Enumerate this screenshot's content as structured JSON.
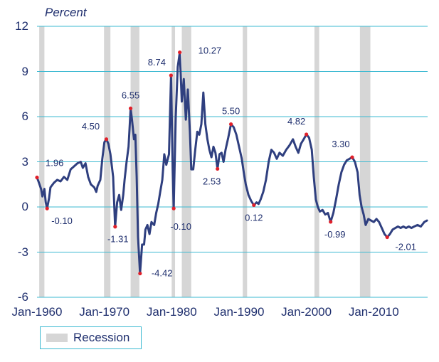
{
  "chart_data": {
    "type": "line",
    "title": "",
    "ylabel": "Percent",
    "xlabel": "",
    "ylim": [
      -6,
      12
    ],
    "yticks": [
      12,
      9,
      6,
      3,
      0,
      -3,
      -6
    ],
    "xlim": [
      1960,
      2018
    ],
    "xtick_labels": [
      "Jan-1960",
      "Jan-1970",
      "Jan-1980",
      "Jan-1990",
      "Jan-2000",
      "Jan-2010"
    ],
    "xtick_values": [
      1960,
      1970,
      1980,
      1990,
      2000,
      2010
    ],
    "grid": true,
    "legend": {
      "placement": "bottom-left",
      "items": [
        {
          "label": "Recession",
          "color": "#d6d6d6"
        }
      ]
    },
    "colors": {
      "line": "#2f3f7f",
      "gridline": "#3bb9d1",
      "marker": "#e0202a",
      "recession": "#d6d6d6",
      "text": "#1f2f6e"
    },
    "recessions": [
      [
        1960.33,
        1961.1
      ],
      [
        1969.95,
        1970.9
      ],
      [
        1973.9,
        1975.2
      ],
      [
        1980.0,
        1980.5
      ],
      [
        1981.5,
        1982.9
      ],
      [
        1990.55,
        1991.2
      ],
      [
        2001.2,
        2001.9
      ],
      [
        2007.95,
        2009.5
      ]
    ],
    "series": [
      {
        "values": [
          [
            1960.0,
            1.96
          ],
          [
            1960.3,
            1.6
          ],
          [
            1960.6,
            1.2
          ],
          [
            1960.8,
            0.7
          ],
          [
            1961.1,
            1.2
          ],
          [
            1961.3,
            0.3
          ],
          [
            1961.5,
            -0.1
          ],
          [
            1961.8,
            0.6
          ],
          [
            1962.0,
            1.3
          ],
          [
            1962.5,
            1.6
          ],
          [
            1963.0,
            1.8
          ],
          [
            1963.5,
            1.7
          ],
          [
            1964.0,
            2.0
          ],
          [
            1964.5,
            1.8
          ],
          [
            1965.0,
            2.5
          ],
          [
            1965.5,
            2.7
          ],
          [
            1966.0,
            2.9
          ],
          [
            1966.5,
            3.0
          ],
          [
            1966.8,
            2.6
          ],
          [
            1967.2,
            2.9
          ],
          [
            1967.6,
            2.0
          ],
          [
            1968.0,
            1.5
          ],
          [
            1968.5,
            1.3
          ],
          [
            1968.8,
            1.0
          ],
          [
            1969.0,
            1.4
          ],
          [
            1969.4,
            1.8
          ],
          [
            1969.7,
            3.2
          ],
          [
            1970.0,
            4.3
          ],
          [
            1970.3,
            4.5
          ],
          [
            1970.6,
            4.2
          ],
          [
            1970.9,
            3.5
          ],
          [
            1971.3,
            2.0
          ],
          [
            1971.6,
            -1.31
          ],
          [
            1971.9,
            0.3
          ],
          [
            1972.2,
            0.8
          ],
          [
            1972.5,
            -0.2
          ],
          [
            1972.8,
            0.8
          ],
          [
            1973.0,
            1.8
          ],
          [
            1973.3,
            3.0
          ],
          [
            1973.6,
            4.0
          ],
          [
            1973.9,
            6.55
          ],
          [
            1974.1,
            5.8
          ],
          [
            1974.4,
            4.5
          ],
          [
            1974.6,
            4.8
          ],
          [
            1974.8,
            2.0
          ],
          [
            1975.0,
            -2.0
          ],
          [
            1975.3,
            -4.42
          ],
          [
            1975.6,
            -2.5
          ],
          [
            1975.9,
            -2.5
          ],
          [
            1976.1,
            -1.5
          ],
          [
            1976.4,
            -1.2
          ],
          [
            1976.7,
            -1.8
          ],
          [
            1977.0,
            -1.0
          ],
          [
            1977.4,
            -1.2
          ],
          [
            1977.7,
            -0.4
          ],
          [
            1978.0,
            0.2
          ],
          [
            1978.3,
            1.0
          ],
          [
            1978.6,
            1.8
          ],
          [
            1978.9,
            3.5
          ],
          [
            1979.2,
            2.8
          ],
          [
            1979.6,
            3.5
          ],
          [
            1979.9,
            8.74
          ],
          [
            1980.15,
            2.5
          ],
          [
            1980.3,
            -0.1
          ],
          [
            1980.6,
            6.0
          ],
          [
            1980.9,
            9.3
          ],
          [
            1981.2,
            10.27
          ],
          [
            1981.5,
            7.0
          ],
          [
            1981.8,
            8.5
          ],
          [
            1982.1,
            5.8
          ],
          [
            1982.4,
            7.8
          ],
          [
            1982.7,
            5.0
          ],
          [
            1982.9,
            2.5
          ],
          [
            1983.2,
            2.5
          ],
          [
            1983.5,
            3.8
          ],
          [
            1983.8,
            5.0
          ],
          [
            1984.1,
            4.8
          ],
          [
            1984.4,
            5.5
          ],
          [
            1984.7,
            7.6
          ],
          [
            1985.0,
            5.5
          ],
          [
            1985.3,
            4.5
          ],
          [
            1985.6,
            3.8
          ],
          [
            1985.9,
            3.3
          ],
          [
            1986.2,
            4.0
          ],
          [
            1986.5,
            3.6
          ],
          [
            1986.8,
            2.53
          ],
          [
            1987.1,
            3.5
          ],
          [
            1987.4,
            3.6
          ],
          [
            1987.7,
            3.0
          ],
          [
            1988.0,
            3.8
          ],
          [
            1988.4,
            4.6
          ],
          [
            1988.8,
            5.5
          ],
          [
            1989.2,
            5.3
          ],
          [
            1989.6,
            4.8
          ],
          [
            1990.0,
            4.0
          ],
          [
            1990.4,
            3.2
          ],
          [
            1990.7,
            2.3
          ],
          [
            1991.0,
            1.5
          ],
          [
            1991.4,
            0.8
          ],
          [
            1991.8,
            0.4
          ],
          [
            1992.2,
            0.12
          ],
          [
            1992.6,
            0.3
          ],
          [
            1992.9,
            0.2
          ],
          [
            1993.2,
            0.5
          ],
          [
            1993.6,
            1.0
          ],
          [
            1994.0,
            1.8
          ],
          [
            1994.4,
            3.0
          ],
          [
            1994.8,
            3.8
          ],
          [
            1995.2,
            3.6
          ],
          [
            1995.6,
            3.2
          ],
          [
            1996.0,
            3.6
          ],
          [
            1996.5,
            3.4
          ],
          [
            1997.0,
            3.8
          ],
          [
            1997.5,
            4.1
          ],
          [
            1998.0,
            4.5
          ],
          [
            1998.4,
            4.0
          ],
          [
            1998.8,
            3.6
          ],
          [
            1999.2,
            4.2
          ],
          [
            1999.6,
            4.5
          ],
          [
            2000.0,
            4.82
          ],
          [
            2000.4,
            4.6
          ],
          [
            2000.8,
            3.8
          ],
          [
            2001.1,
            2.0
          ],
          [
            2001.4,
            0.5
          ],
          [
            2001.7,
            0.0
          ],
          [
            2002.0,
            -0.3
          ],
          [
            2002.4,
            -0.2
          ],
          [
            2002.8,
            -0.5
          ],
          [
            2003.2,
            -0.4
          ],
          [
            2003.6,
            -0.99
          ],
          [
            2004.0,
            -0.4
          ],
          [
            2004.4,
            0.5
          ],
          [
            2004.8,
            1.5
          ],
          [
            2005.2,
            2.3
          ],
          [
            2005.6,
            2.8
          ],
          [
            2006.0,
            3.1
          ],
          [
            2006.4,
            3.2
          ],
          [
            2006.8,
            3.3
          ],
          [
            2007.2,
            3.0
          ],
          [
            2007.6,
            2.3
          ],
          [
            2007.9,
            0.8
          ],
          [
            2008.2,
            0.0
          ],
          [
            2008.5,
            -0.5
          ],
          [
            2008.8,
            -1.2
          ],
          [
            2009.2,
            -0.8
          ],
          [
            2009.6,
            -0.9
          ],
          [
            2010.0,
            -1.0
          ],
          [
            2010.4,
            -0.8
          ],
          [
            2010.8,
            -1.0
          ],
          [
            2011.2,
            -1.4
          ],
          [
            2011.6,
            -1.8
          ],
          [
            2012.0,
            -2.01
          ],
          [
            2012.4,
            -1.8
          ],
          [
            2012.8,
            -1.5
          ],
          [
            2013.2,
            -1.4
          ],
          [
            2013.6,
            -1.3
          ],
          [
            2014.0,
            -1.4
          ],
          [
            2014.4,
            -1.3
          ],
          [
            2014.8,
            -1.4
          ],
          [
            2015.2,
            -1.3
          ],
          [
            2015.6,
            -1.4
          ],
          [
            2016.0,
            -1.3
          ],
          [
            2016.5,
            -1.2
          ],
          [
            2017.0,
            -1.3
          ],
          [
            2017.5,
            -1.0
          ],
          [
            2017.9,
            -0.9
          ]
        ]
      }
    ],
    "annotations": [
      {
        "x": 1960.0,
        "y": 1.96,
        "label": "1.96"
      },
      {
        "x": 1961.5,
        "y": -0.1,
        "label": "-0.10"
      },
      {
        "x": 1970.3,
        "y": 4.5,
        "label": "4.50"
      },
      {
        "x": 1971.6,
        "y": -1.31,
        "label": "-1.31"
      },
      {
        "x": 1973.9,
        "y": 6.55,
        "label": "6.55"
      },
      {
        "x": 1975.3,
        "y": -4.42,
        "label": "-4.42"
      },
      {
        "x": 1979.9,
        "y": 8.74,
        "label": "8.74"
      },
      {
        "x": 1980.3,
        "y": -0.1,
        "label": "-0.10"
      },
      {
        "x": 1981.2,
        "y": 10.27,
        "label": "10.27"
      },
      {
        "x": 1986.8,
        "y": 2.53,
        "label": "2.53"
      },
      {
        "x": 1988.8,
        "y": 5.5,
        "label": "5.50"
      },
      {
        "x": 1992.2,
        "y": 0.12,
        "label": "0.12"
      },
      {
        "x": 2000.0,
        "y": 4.82,
        "label": "4.82"
      },
      {
        "x": 2003.6,
        "y": -0.99,
        "label": "-0.99"
      },
      {
        "x": 2006.8,
        "y": 3.3,
        "label": "3.30"
      },
      {
        "x": 2012.0,
        "y": -2.01,
        "label": "-2.01"
      }
    ]
  }
}
